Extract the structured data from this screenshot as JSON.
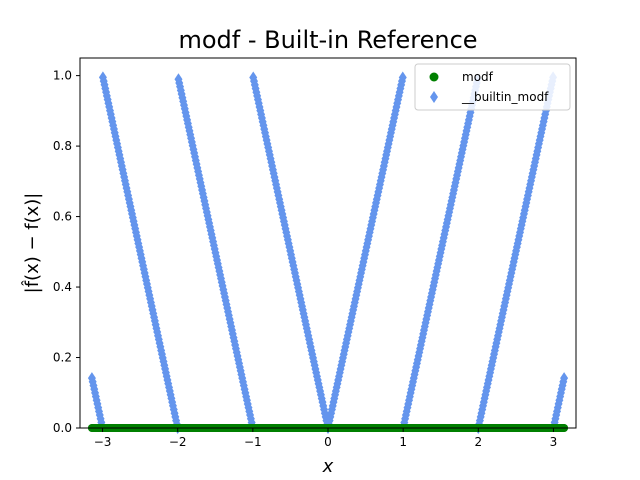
{
  "chart_data": {
    "type": "scatter",
    "title": "modf - Built-in Reference",
    "xlabel": "x",
    "ylabel": "|f̂(x) − f(x)|",
    "xlim": [
      -3.3,
      3.3
    ],
    "ylim": [
      0,
      1.05
    ],
    "xticks": [
      -3,
      -2,
      -1,
      0,
      1,
      2,
      3
    ],
    "xtick_labels": [
      "−3",
      "−2",
      "−1",
      "0",
      "1",
      "2",
      "3"
    ],
    "yticks": [
      0,
      0.2,
      0.4,
      0.6,
      0.8,
      1.0
    ],
    "ytick_labels": [
      "0.0",
      "0.2",
      "0.4",
      "0.6",
      "0.8",
      "1.0"
    ],
    "grid": false,
    "legend_position": "top-right",
    "x_range": [
      -3.14159,
      3.14159
    ],
    "series": [
      {
        "name": "modf",
        "marker": "circle",
        "color": "#008000",
        "function": "zero",
        "description_values": "error is 0 for all x"
      },
      {
        "name": "__builtin_modf",
        "marker": "diamond",
        "color": "#6495ED",
        "function": "abs_fractional_part",
        "description_values": "|x - trunc(x)|"
      }
    ]
  }
}
